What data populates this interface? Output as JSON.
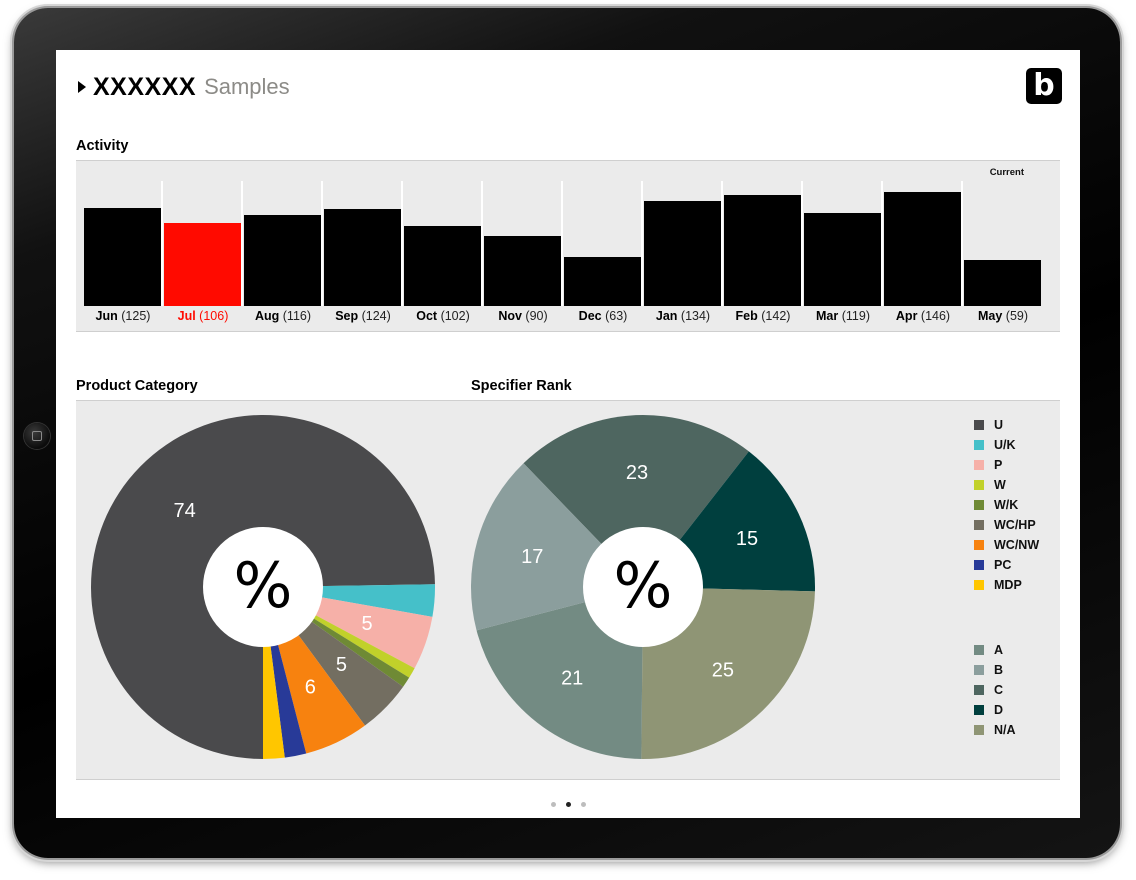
{
  "header": {
    "title_bold": "XXXXXX",
    "title_light": "Samples",
    "logo_letter": "b"
  },
  "activity": {
    "section_title": "Activity",
    "current_label": "Current",
    "months": [
      {
        "name": "Jun",
        "count": "(125)"
      },
      {
        "name": "Jul",
        "count": "(106)"
      },
      {
        "name": "Aug",
        "count": "(116)"
      },
      {
        "name": "Sep",
        "count": "(124)"
      },
      {
        "name": "Oct",
        "count": "(102)"
      },
      {
        "name": "Nov",
        "count": "(90)"
      },
      {
        "name": "Dec",
        "count": "(63)"
      },
      {
        "name": "Jan",
        "count": "(134)"
      },
      {
        "name": "Feb",
        "count": "(142)"
      },
      {
        "name": "Mar",
        "count": "(119)"
      },
      {
        "name": "Apr",
        "count": "(146)"
      },
      {
        "name": "May",
        "count": "(59)"
      }
    ]
  },
  "product_category": {
    "section_title": "Product Category",
    "center_symbol": "%"
  },
  "specifier_rank": {
    "section_title": "Specifier Rank",
    "center_symbol": "%"
  },
  "legend_category": [
    {
      "label": "U",
      "color": "#4a4a4c"
    },
    {
      "label": "U/K",
      "color": "#45c0c9"
    },
    {
      "label": "P",
      "color": "#f6b0a8"
    },
    {
      "label": "W",
      "color": "#c1d12a"
    },
    {
      "label": "W/K",
      "color": "#6f8a35"
    },
    {
      "label": "WC/HP",
      "color": "#736e61"
    },
    {
      "label": "WC/NW",
      "color": "#f7820f"
    },
    {
      "label": "PC",
      "color": "#283a98"
    },
    {
      "label": "MDP",
      "color": "#ffc600"
    }
  ],
  "legend_rank": [
    {
      "label": "A",
      "color": "#738b83"
    },
    {
      "label": "B",
      "color": "#8b9e9d"
    },
    {
      "label": "C",
      "color": "#4e6660"
    },
    {
      "label": "D",
      "color": "#003f3e"
    },
    {
      "label": "N/A",
      "color": "#8f9575"
    }
  ],
  "chart_data": [
    {
      "type": "bar",
      "title": "Activity",
      "categories": [
        "Jun",
        "Jul",
        "Aug",
        "Sep",
        "Oct",
        "Nov",
        "Dec",
        "Jan",
        "Feb",
        "Mar",
        "Apr",
        "May"
      ],
      "values": [
        125,
        106,
        116,
        124,
        102,
        90,
        63,
        134,
        142,
        119,
        146,
        59
      ],
      "highlight": "Jul",
      "highlight_color": "#ff0a00",
      "bar_color": "#000000"
    },
    {
      "type": "pie",
      "title": "Product Category",
      "donut": true,
      "slices": [
        {
          "label": "U",
          "value": 74,
          "color": "#4a4a4c",
          "shown": "74"
        },
        {
          "label": "U/K",
          "value": 3,
          "color": "#45c0c9",
          "shown": ""
        },
        {
          "label": "P",
          "value": 5,
          "color": "#f6b0a8",
          "shown": "5"
        },
        {
          "label": "W",
          "value": 1,
          "color": "#c1d12a",
          "shown": ""
        },
        {
          "label": "W/K",
          "value": 1,
          "color": "#6f8a35",
          "shown": ""
        },
        {
          "label": "WC/HP",
          "value": 5,
          "color": "#736e61",
          "shown": "5"
        },
        {
          "label": "WC/NW",
          "value": 6,
          "color": "#f7820f",
          "shown": "6"
        },
        {
          "label": "PC",
          "value": 2,
          "color": "#283a98",
          "shown": ""
        },
        {
          "label": "MDP",
          "value": 2,
          "color": "#ffc600",
          "shown": ""
        }
      ]
    },
    {
      "type": "pie",
      "title": "Specifier Rank",
      "donut": true,
      "slices": [
        {
          "label": "C",
          "value": 23,
          "color": "#4e6660",
          "shown": "23"
        },
        {
          "label": "D",
          "value": 15,
          "color": "#003f3e",
          "shown": "15"
        },
        {
          "label": "N/A",
          "value": 25,
          "color": "#8f9575",
          "shown": "25"
        },
        {
          "label": "A",
          "value": 21,
          "color": "#738b83",
          "shown": "21"
        },
        {
          "label": "B",
          "value": 17,
          "color": "#8b9e9d",
          "shown": "17"
        }
      ]
    }
  ],
  "pager": {
    "count": 3,
    "active": 1
  }
}
